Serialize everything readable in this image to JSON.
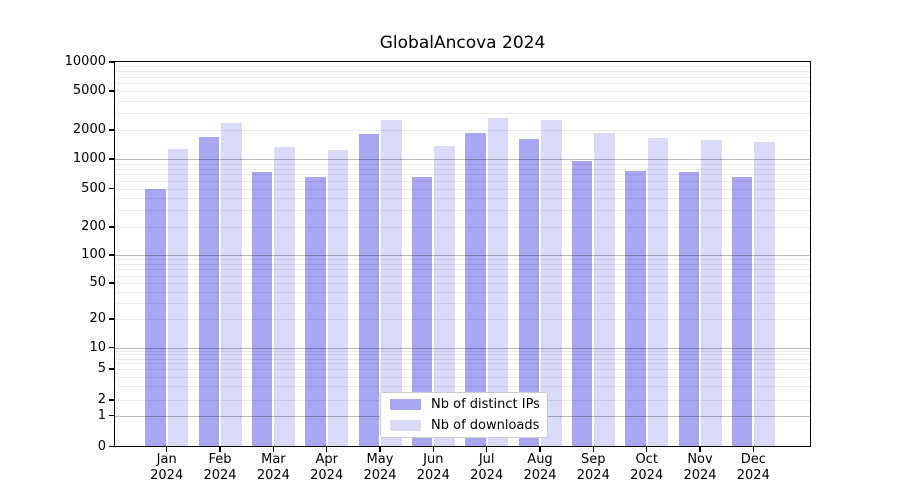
{
  "chart_data": {
    "type": "bar",
    "title": "GlobalAncova 2024",
    "categories": [
      "Jan",
      "Feb",
      "Mar",
      "Apr",
      "May",
      "Jun",
      "Jul",
      "Aug",
      "Sep",
      "Oct",
      "Nov",
      "Dec"
    ],
    "x_tick_year": "2024",
    "series": [
      {
        "name": "Nb of distinct IPs",
        "color": "#a6a6f2",
        "values": [
          500,
          1700,
          730,
          660,
          1820,
          655,
          1880,
          1610,
          960,
          760,
          745,
          650
        ]
      },
      {
        "name": "Nb of downloads",
        "color": "#d9d9f8",
        "values": [
          1280,
          2370,
          1320,
          1240,
          2550,
          1360,
          2630,
          2520,
          1870,
          1640,
          1570,
          1520
        ]
      }
    ],
    "xlabel": "",
    "ylabel": "",
    "yscale": "log-with-zero",
    "ylim": [
      0,
      10000
    ],
    "yticks": [
      0,
      1,
      2,
      5,
      10,
      20,
      50,
      100,
      200,
      500,
      1000,
      2000,
      5000,
      10000
    ],
    "grid": true,
    "grid_color_major": "#b5b5b5",
    "grid_color_minor": "#ebebeb",
    "legend": {
      "position": "inside-bottom-center",
      "entries": [
        "Nb of distinct IPs",
        "Nb of downloads"
      ]
    }
  }
}
